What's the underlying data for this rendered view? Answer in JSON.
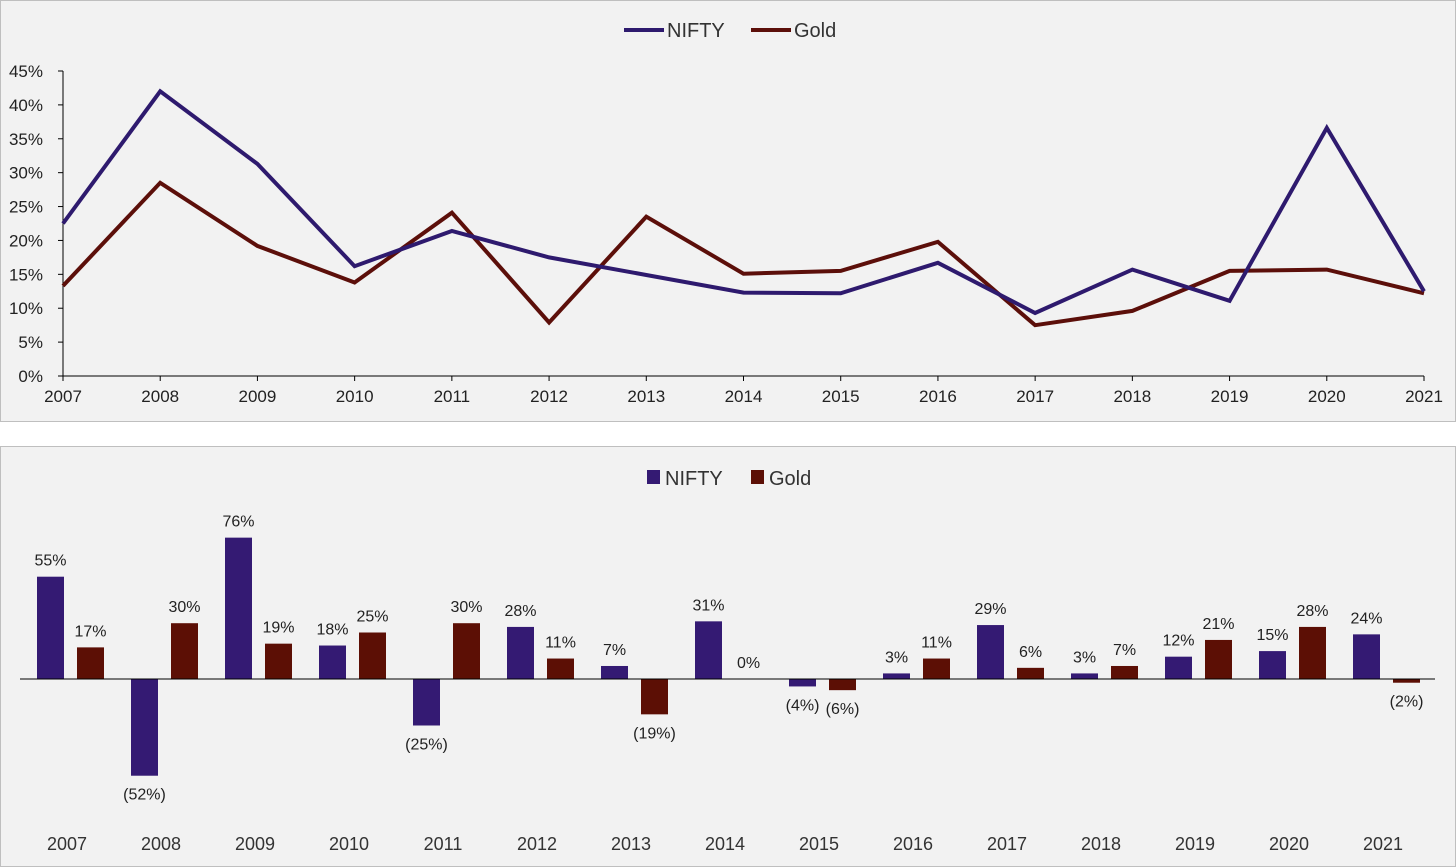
{
  "chart_data": [
    {
      "type": "line",
      "x": [
        "2007",
        "2008",
        "2009",
        "2010",
        "2011",
        "2012",
        "2013",
        "2014",
        "2015",
        "2016",
        "2017",
        "2018",
        "2019",
        "2020",
        "2021"
      ],
      "ylim": [
        0,
        45
      ],
      "yticks": [
        "0%",
        "5%",
        "10%",
        "15%",
        "20%",
        "25%",
        "30%",
        "35%",
        "40%",
        "45%"
      ],
      "legend_position": "top-center",
      "grid": false,
      "series": [
        {
          "name": "NIFTY",
          "color": "#2e1a6e",
          "values": [
            22.5,
            42.0,
            31.3,
            16.2,
            21.4,
            17.5,
            14.9,
            12.3,
            12.2,
            16.7,
            9.3,
            15.7,
            11.1,
            36.6,
            12.5
          ]
        },
        {
          "name": "Gold",
          "color": "#5c0f0a",
          "values": [
            13.3,
            28.5,
            19.2,
            13.8,
            24.1,
            7.9,
            23.5,
            15.1,
            15.5,
            19.8,
            7.5,
            9.6,
            15.5,
            15.7,
            12.2
          ]
        }
      ]
    },
    {
      "type": "bar",
      "categories": [
        "2007",
        "2008",
        "2009",
        "2010",
        "2011",
        "2012",
        "2013",
        "2014",
        "2015",
        "2016",
        "2017",
        "2018",
        "2019",
        "2020",
        "2021"
      ],
      "legend_position": "top-center",
      "grid": false,
      "series": [
        {
          "name": "NIFTY",
          "color": "#341a73",
          "values": [
            55,
            -52,
            76,
            18,
            -25,
            28,
            7,
            31,
            -4,
            3,
            29,
            3,
            12,
            15,
            24
          ],
          "labels": [
            "55%",
            "(52%)",
            "76%",
            "18%",
            "(25%)",
            "28%",
            "7%",
            "31%",
            "(4%)",
            "3%",
            "29%",
            "3%",
            "12%",
            "15%",
            "24%"
          ]
        },
        {
          "name": "Gold",
          "color": "#5c0f05",
          "values": [
            17,
            30,
            19,
            25,
            30,
            11,
            -19,
            0,
            -6,
            11,
            6,
            7,
            21,
            28,
            -2
          ],
          "labels": [
            "17%",
            "30%",
            "19%",
            "25%",
            "30%",
            "11%",
            "(19%)",
            "0%",
            "(6%)",
            "11%",
            "6%",
            "7%",
            "21%",
            "28%",
            "(2%)"
          ]
        }
      ]
    }
  ]
}
